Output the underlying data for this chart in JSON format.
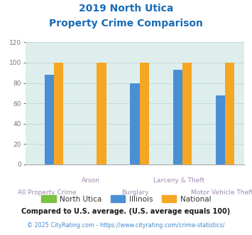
{
  "title_line1": "2019 North Utica",
  "title_line2": "Property Crime Comparison",
  "categories": [
    "All Property Crime",
    "Arson",
    "Burglary",
    "Larceny & Theft",
    "Motor Vehicle Theft"
  ],
  "north_utica": [
    0,
    0,
    0,
    0,
    0
  ],
  "illinois": [
    88,
    0,
    80,
    93,
    68
  ],
  "national": [
    100,
    100,
    100,
    100,
    100
  ],
  "north_utica_color": "#7bc142",
  "illinois_color": "#4a8fd4",
  "national_color": "#f5a623",
  "bg_color": "#deeeed",
  "title_color": "#1a6cb5",
  "xlabel_color": "#a08ab0",
  "tick_color": "#777777",
  "ylim": [
    0,
    120
  ],
  "yticks": [
    0,
    20,
    40,
    60,
    80,
    100,
    120
  ],
  "grid_color": "#c0d8d8",
  "footnote1": "Compared to U.S. average. (U.S. average equals 100)",
  "footnote2": "© 2025 CityRating.com - https://www.cityrating.com/crime-statistics/",
  "footnote1_color": "#1a1a1a",
  "footnote2_color": "#4488cc",
  "legend_labels": [
    "North Utica",
    "Illinois",
    "National"
  ],
  "legend_text_color": "#333333"
}
